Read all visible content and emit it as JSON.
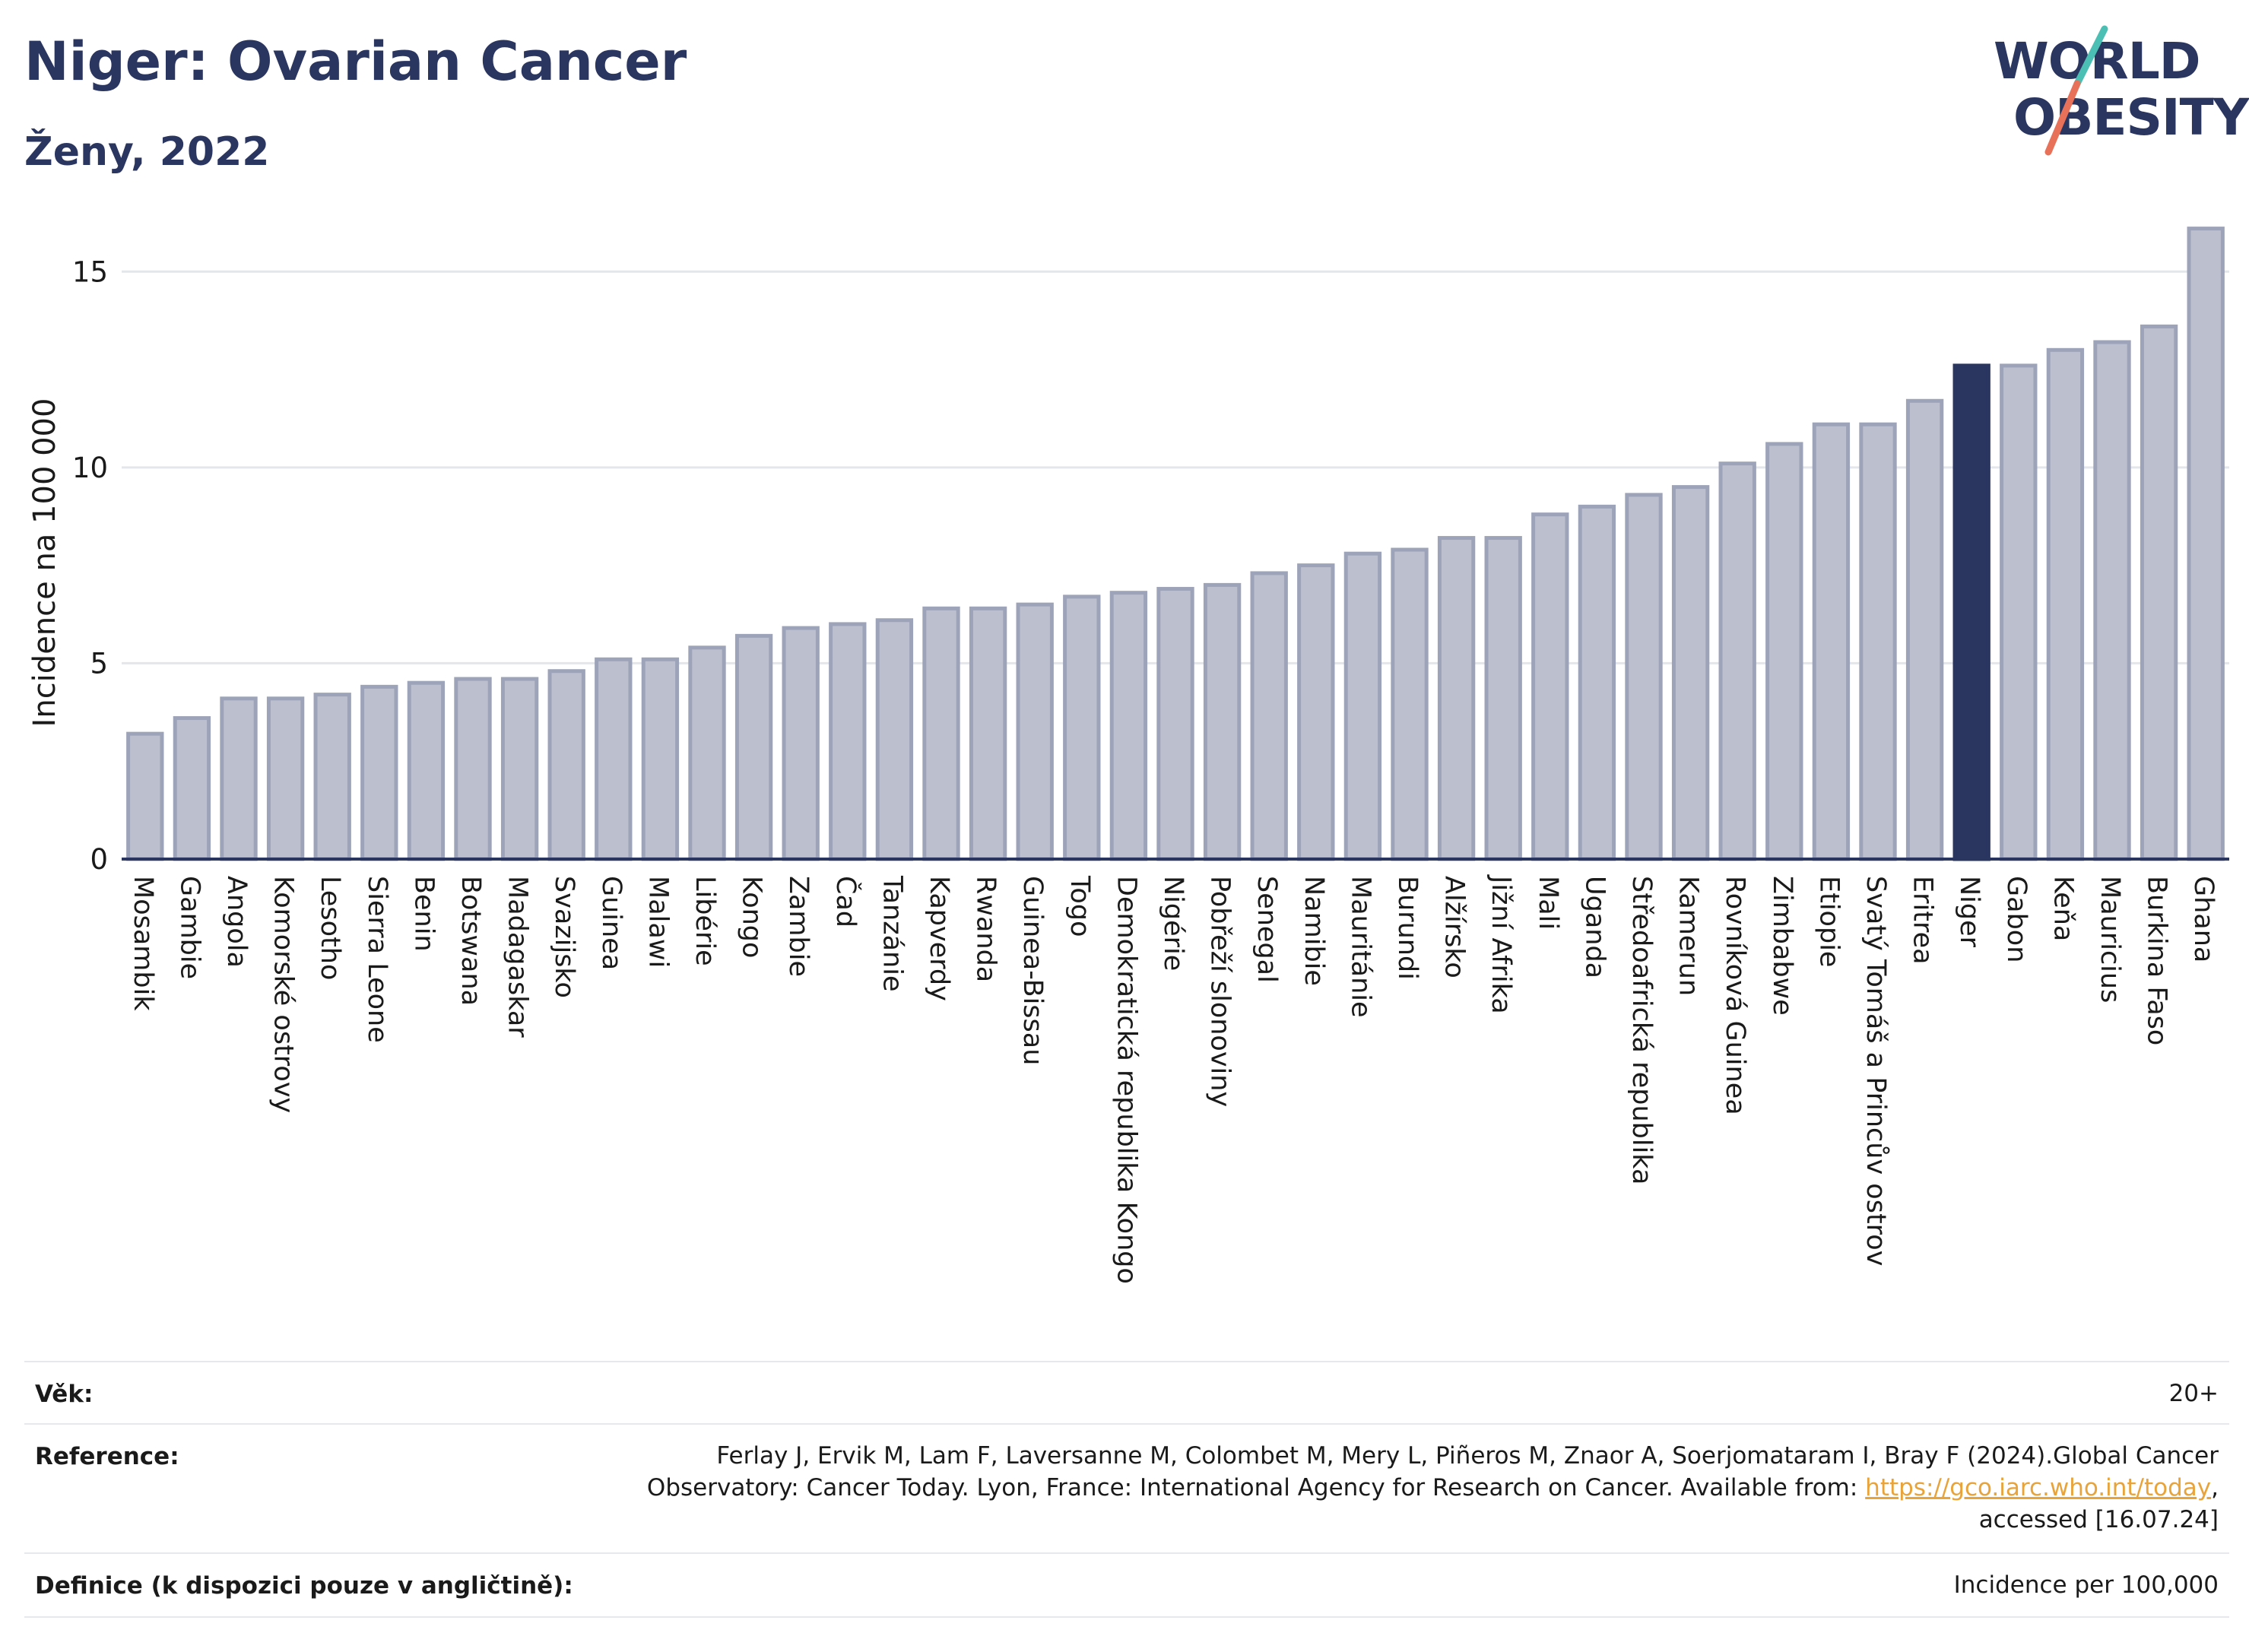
{
  "header": {
    "title": "Niger: Ovarian Cancer",
    "subtitle": "Ženy, 2022"
  },
  "logo": {
    "line1": "WORLD",
    "line2": "OBESITY",
    "colors": {
      "text": "#2a3560",
      "slash_top": "#4bbfb3",
      "slash_bottom": "#e8715a"
    }
  },
  "chart_data": {
    "type": "bar",
    "ylabel": "Incidence na 100 000",
    "xlabel": "",
    "ylim": [
      0,
      16.5
    ],
    "yticks": [
      0,
      5,
      10,
      15
    ],
    "grid": true,
    "highlight": "Niger",
    "colors": {
      "bar": "#bcc0ce",
      "bar_border": "#9da3b8",
      "highlight": "#2a3560",
      "grid": "#e3e6ea"
    },
    "categories": [
      "Mosambik",
      "Gambie",
      "Angola",
      "Komorské ostrovy",
      "Lesotho",
      "Sierra Leone",
      "Benin",
      "Botswana",
      "Madagaskar",
      "Svazijsko",
      "Guinea",
      "Malawi",
      "Libérie",
      "Kongo",
      "Zambie",
      "Čad",
      "Tanzánie",
      "Kapverdy",
      "Rwanda",
      "Guinea-Bissau",
      "Togo",
      "Demokratická republika Kongo",
      "Nigérie",
      "Pobřeží slonoviny",
      "Senegal",
      "Namibie",
      "Mauritánie",
      "Burundi",
      "Alžírsko",
      "Jižní Afrika",
      "Mali",
      "Uganda",
      "Středoafrická republika",
      "Kamerun",
      "Rovníková Guinea",
      "Zimbabwe",
      "Etiopie",
      "Svatý Tomáš a Princův ostrov",
      "Eritrea",
      "Niger",
      "Gabon",
      "Keňa",
      "Mauricius",
      "Burkina Faso",
      "Ghana"
    ],
    "values": [
      3.2,
      3.6,
      4.1,
      4.1,
      4.2,
      4.4,
      4.5,
      4.6,
      4.6,
      4.8,
      5.1,
      5.1,
      5.4,
      5.7,
      5.9,
      6.0,
      6.1,
      6.4,
      6.4,
      6.5,
      6.7,
      6.8,
      6.9,
      7.0,
      7.3,
      7.5,
      7.8,
      7.9,
      8.2,
      8.2,
      8.8,
      9.0,
      9.3,
      9.5,
      10.1,
      10.6,
      11.1,
      11.1,
      11.7,
      12.6,
      12.6,
      13.0,
      13.2,
      13.6,
      16.1
    ]
  },
  "footer": {
    "age_label": "Věk:",
    "age_value": "20+",
    "reference_label": "Reference:",
    "reference_line1": "Ferlay J, Ervik M, Lam F, Laversanne M, Colombet M, Mery L, Piñeros M, Znaor A, Soerjomataram I, Bray F (2024).Global Cancer",
    "reference_line2_pre": "Observatory: Cancer Today. Lyon, France: International Agency for Research on Cancer. Available from: ",
    "reference_link": "https://gco.iarc.who.int/today",
    "reference_line2_post": ",",
    "reference_line3": "accessed [16.07.24]",
    "definition_label": "Definice (k dispozici pouze v angličtině):",
    "definition_value": "Incidence per 100,000"
  }
}
